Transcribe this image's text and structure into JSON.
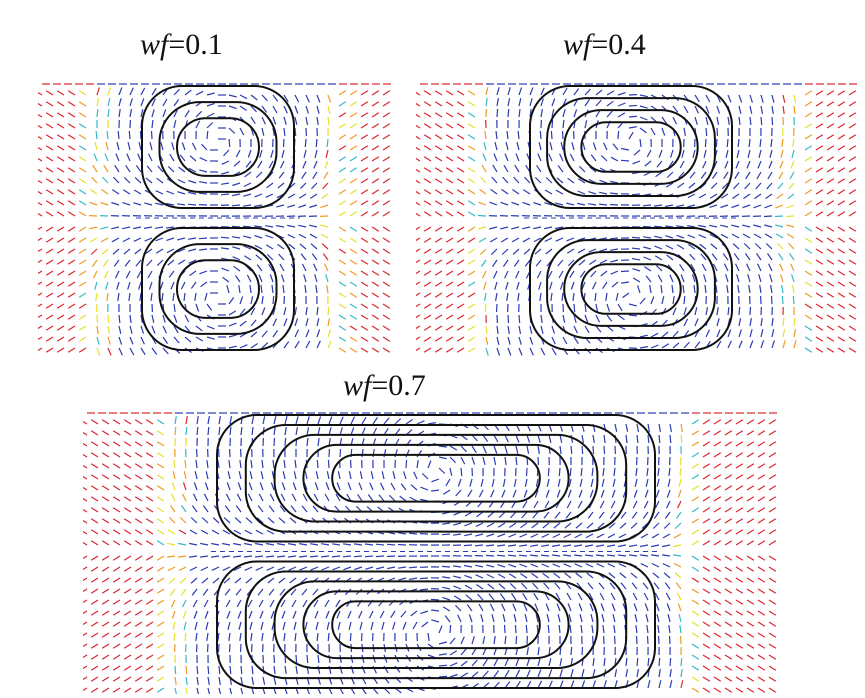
{
  "panels": [
    {
      "id": "p1",
      "var": "wf",
      "value": "=0.1"
    },
    {
      "id": "p2",
      "var": "wf",
      "value": "=0.4"
    },
    {
      "id": "p3",
      "var": "wf",
      "value": "=0.7"
    }
  ],
  "colors": {
    "fast": "#d8262c",
    "mid_high": "#f09a23",
    "mid": "#e5e12a",
    "mid_low": "#36b9c8",
    "slow": "#2b3cb1",
    "streamline": "#111111"
  }
}
